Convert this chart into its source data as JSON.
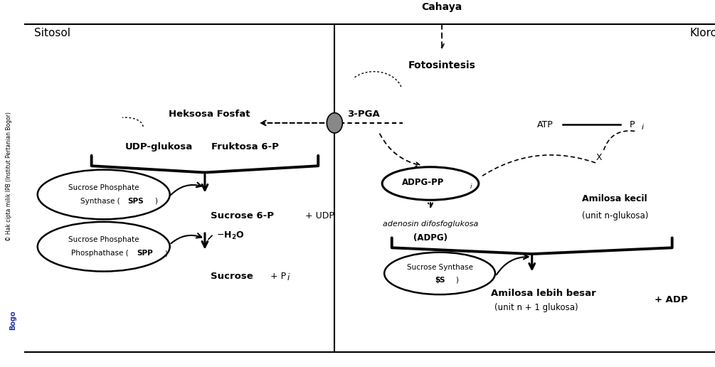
{
  "fig_width": 10.05,
  "fig_height": 5.16,
  "dpi": 100,
  "bg_color": "#ffffff",
  "sitosol_label": "Sitosol",
  "kloro_label": "Kloro",
  "cahaya_label": "Cahaya",
  "fotosintesis_label": "Fotosintesis",
  "heksosa_fosfat_label": "Heksosa Fosfat",
  "pga_label": "3-PGA",
  "udp_glukosa_label": "UDP-glukosa",
  "fruktosa_label": "Fruktosa 6-P",
  "sucrose6p_label": "Sucrose 6-P",
  "udp_label": "+ UDP",
  "sucrose_label": "Sucrose",
  "adpg_text": "ADPG-PP",
  "adpg_sub": "i",
  "adenosin_italic": "adenosin difosfoglukosa",
  "adpg_paren": "(ADPG)",
  "amilosa_kecil": "Amilosa kecil",
  "amilosa_kecil_sub": "(unit n‐glukosa)",
  "amilosa_besar": "Amilosa lebih besar",
  "amilosa_besar_sub": "(unit n + 1 glukosa)",
  "adp_label": "+ ADP",
  "atp_label": "ATP",
  "x_label": "X",
  "sps_line1": "Sucrose Phosphate",
  "sps_line2_plain": "Synthase (",
  "sps_bold": "SPS",
  "spp_line1": "Sucrose Phosphate",
  "spp_line2_plain": "Phosphathase (",
  "spp_bold": "SPP",
  "ss_line1": "Sucrose Synthase",
  "ss_bold": "SS",
  "h2o_label": "H₂O",
  "pi_label": "Pi",
  "copyright_text": "© Hak cipta milik IPB (Institut Pertanian Bogor)",
  "bogor_text": "Bogo"
}
